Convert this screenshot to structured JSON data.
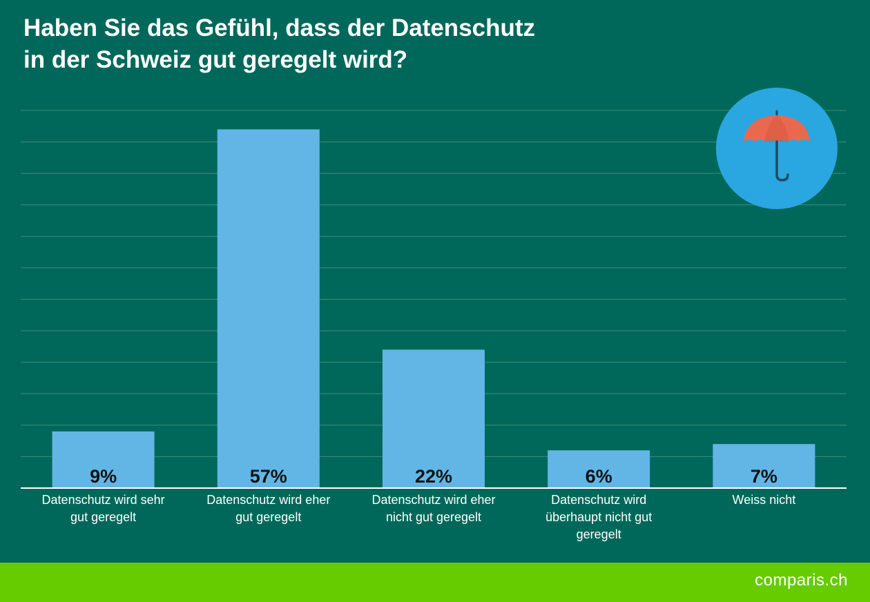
{
  "title": {
    "line1": "Haben Sie das Gefühl, dass der Datenschutz",
    "line2": "in der Schweiz gut geregelt wird?"
  },
  "chart_data": {
    "type": "bar",
    "categories": [
      [
        "Datenschutz wird sehr",
        "gut geregelt"
      ],
      [
        "Datenschutz wird eher",
        "gut geregelt"
      ],
      [
        "Datenschutz wird eher",
        "nicht gut geregelt"
      ],
      [
        "Datenschutz wird",
        "überhaupt nicht gut",
        "geregelt"
      ],
      [
        "Weiss nicht"
      ]
    ],
    "values": [
      9,
      57,
      22,
      6,
      7
    ],
    "value_labels": [
      "9%",
      "57%",
      "22%",
      "6%",
      "7%"
    ],
    "ylim": [
      0,
      60
    ],
    "grid": true,
    "bar_color": "#62b6e6",
    "grid_color": "#3d8d80",
    "axis_color": "#ffffff"
  },
  "badge": {
    "icon": "umbrella-icon",
    "circle_color": "#2aa7e0",
    "canopy_color": "#e8694f"
  },
  "footer": {
    "brand": "comparis.ch",
    "color": "#66cc00"
  }
}
